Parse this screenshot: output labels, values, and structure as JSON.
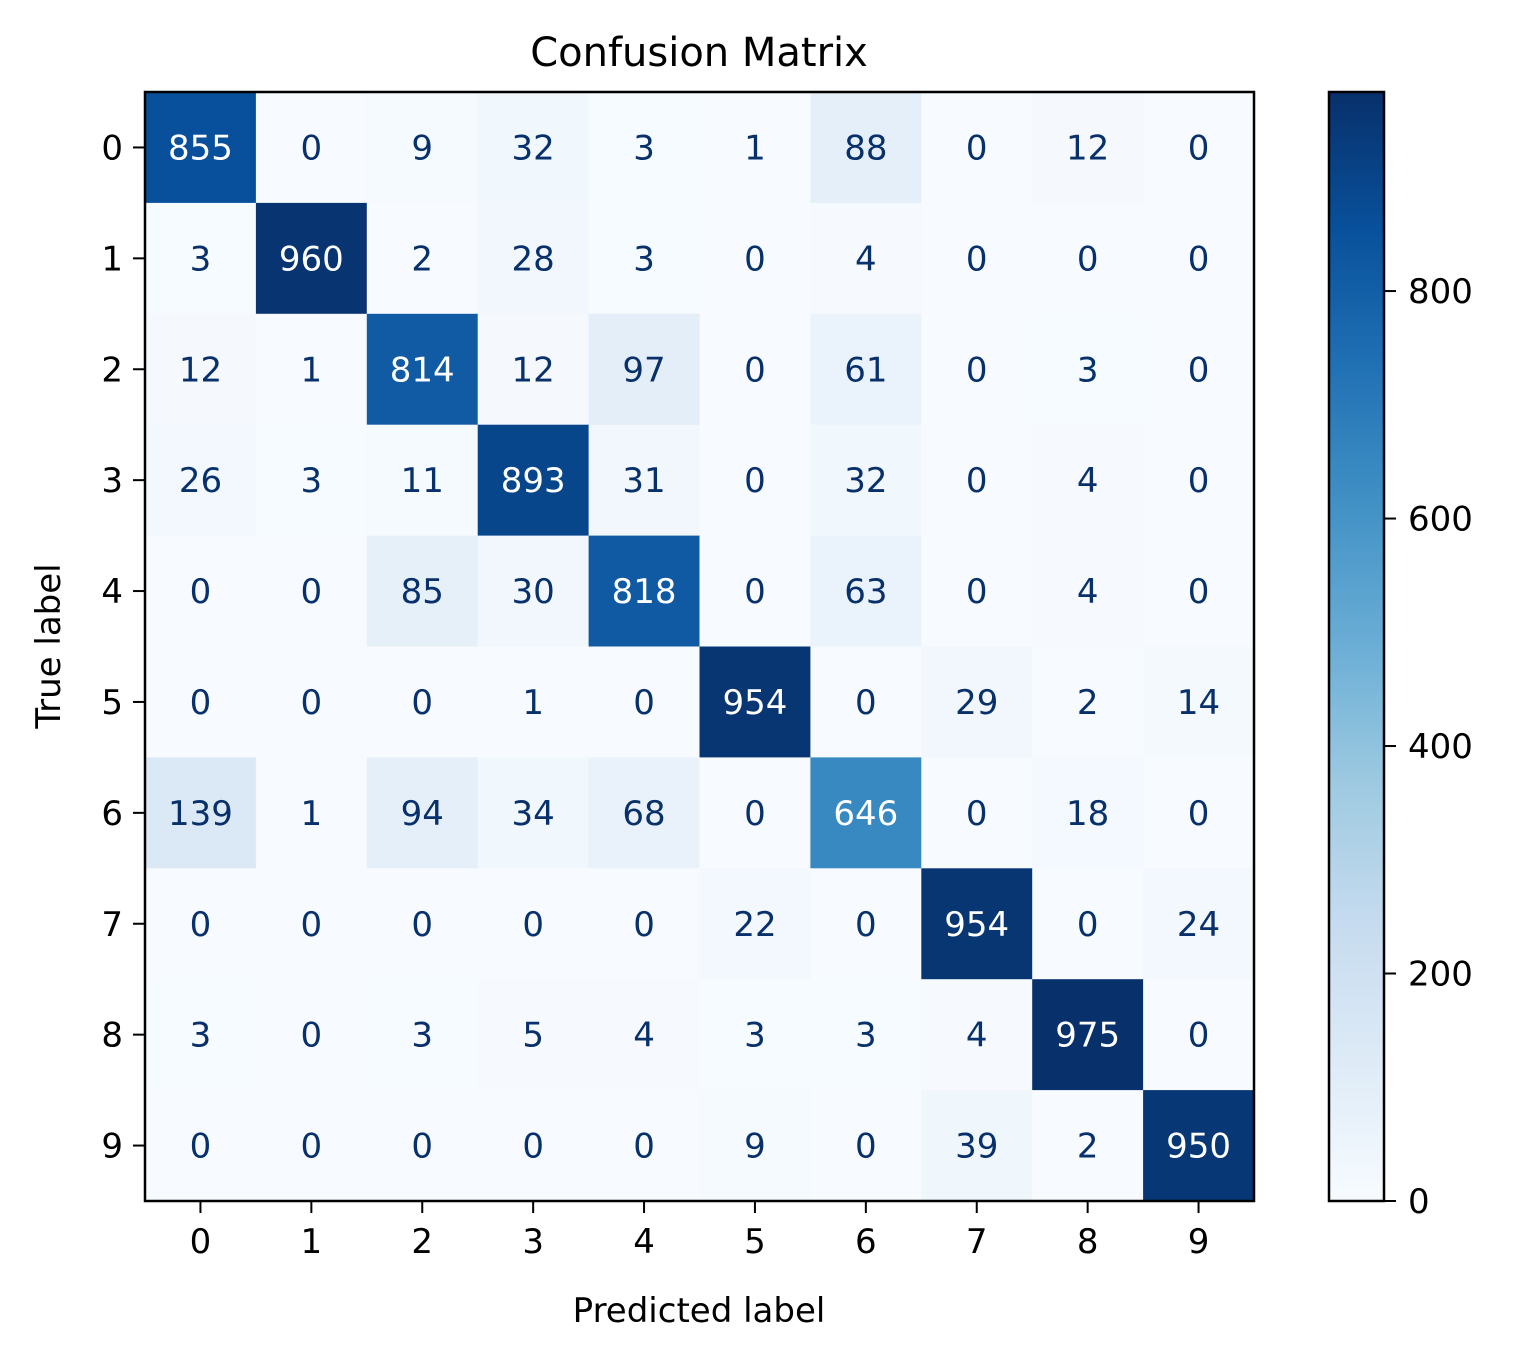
{
  "chart_data": {
    "type": "heatmap",
    "title": "Confusion Matrix",
    "xlabel": "Predicted label",
    "ylabel": "True label",
    "x_categories": [
      "0",
      "1",
      "2",
      "3",
      "4",
      "5",
      "6",
      "7",
      "8",
      "9"
    ],
    "y_categories": [
      "0",
      "1",
      "2",
      "3",
      "4",
      "5",
      "6",
      "7",
      "8",
      "9"
    ],
    "values": [
      [
        855,
        0,
        9,
        32,
        3,
        1,
        88,
        0,
        12,
        0
      ],
      [
        3,
        960,
        2,
        28,
        3,
        0,
        4,
        0,
        0,
        0
      ],
      [
        12,
        1,
        814,
        12,
        97,
        0,
        61,
        0,
        3,
        0
      ],
      [
        26,
        3,
        11,
        893,
        31,
        0,
        32,
        0,
        4,
        0
      ],
      [
        0,
        0,
        85,
        30,
        818,
        0,
        63,
        0,
        4,
        0
      ],
      [
        0,
        0,
        0,
        1,
        0,
        954,
        0,
        29,
        2,
        14
      ],
      [
        139,
        1,
        94,
        34,
        68,
        0,
        646,
        0,
        18,
        0
      ],
      [
        0,
        0,
        0,
        0,
        0,
        22,
        0,
        954,
        0,
        24
      ],
      [
        3,
        0,
        3,
        5,
        4,
        3,
        3,
        4,
        975,
        0
      ],
      [
        0,
        0,
        0,
        0,
        0,
        9,
        0,
        39,
        2,
        950
      ]
    ],
    "colormap": "Blues",
    "vmin": 0,
    "vmax": 975,
    "colorbar": {
      "ticks": [
        0,
        200,
        400,
        600,
        800
      ],
      "range": [
        0,
        975
      ]
    },
    "grid": false
  }
}
